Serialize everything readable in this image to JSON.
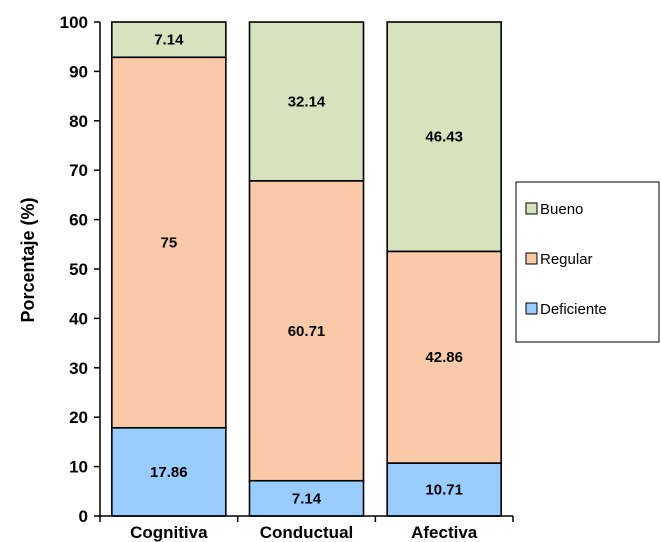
{
  "chart_data": {
    "type": "bar",
    "stacked": true,
    "categories": [
      "Cognitiva",
      "Conductual",
      "Afectiva"
    ],
    "series": [
      {
        "name": "Deficiente",
        "color": "#99ccff",
        "values": [
          17.86,
          7.14,
          10.71
        ],
        "labels": [
          "17.86",
          "7.14",
          "10.71"
        ]
      },
      {
        "name": "Regular",
        "color": "#fac9a7",
        "values": [
          75,
          60.71,
          42.86
        ],
        "labels": [
          "75",
          "60.71",
          "42.86"
        ]
      },
      {
        "name": "Bueno",
        "color": "#d6e3bc",
        "values": [
          7.14,
          32.14,
          46.43
        ],
        "labels": [
          "7.14",
          "32.14",
          "46.43"
        ]
      }
    ],
    "ylabel": "Porcentaje (%)",
    "xlabel": "",
    "ylim": [
      0,
      100
    ],
    "yticks": [
      0,
      10,
      20,
      30,
      40,
      50,
      60,
      70,
      80,
      90,
      100
    ],
    "grid": false,
    "legend_position": "right",
    "legend_order": [
      "Bueno",
      "Regular",
      "Deficiente"
    ]
  }
}
